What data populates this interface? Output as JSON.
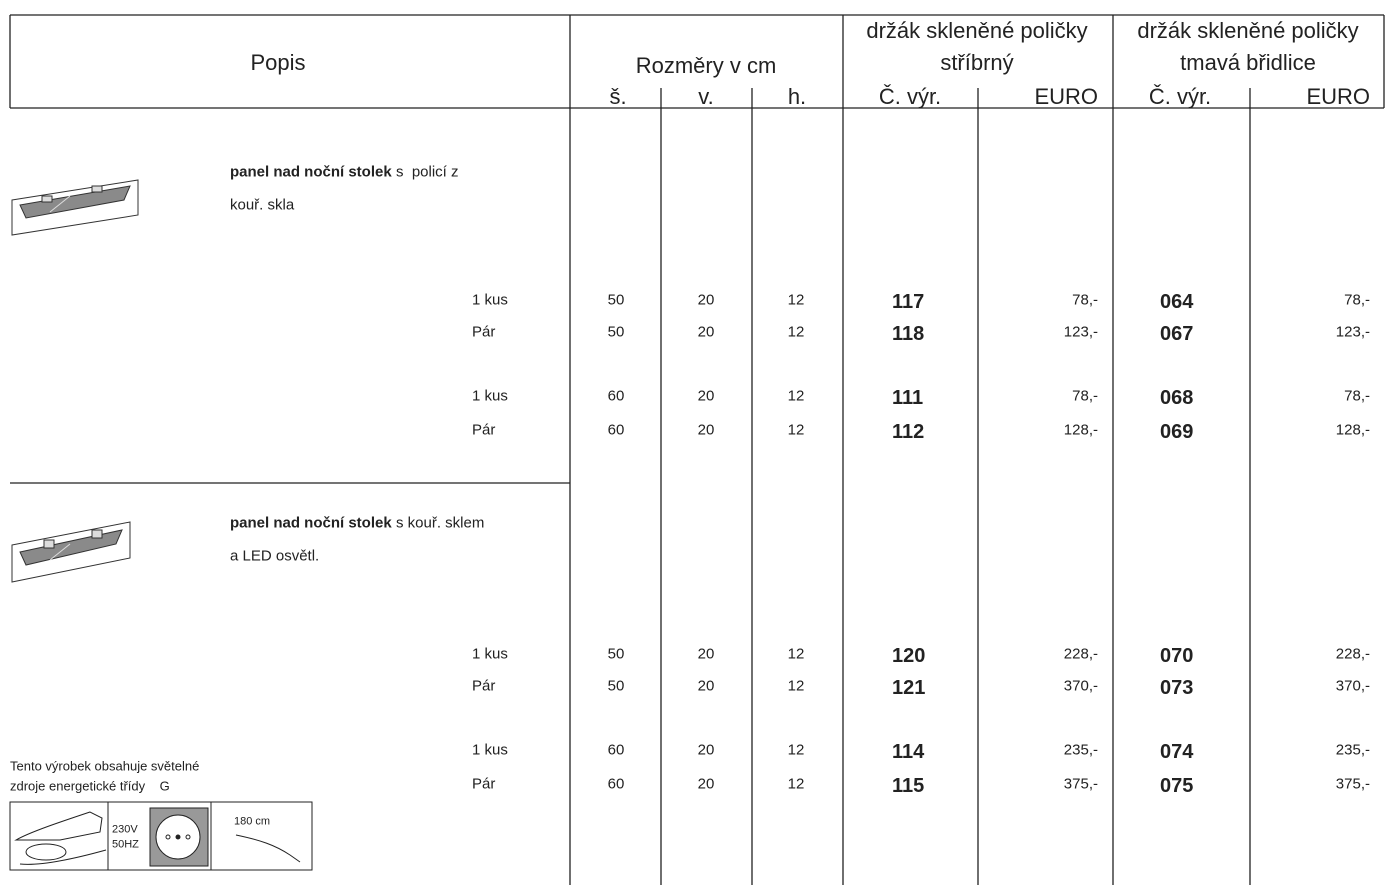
{
  "header": {
    "popis": "Popis",
    "rozmery": "Rozměry v cm",
    "dims": [
      "š.",
      "v.",
      "h."
    ],
    "groups": [
      {
        "title": "držák skleněné poličky",
        "subtitle": "stříbrný",
        "code": "Č. výr.",
        "price": "EURO"
      },
      {
        "title": "držák skleněné poličky",
        "subtitle": "tmavá břidlice",
        "code": "Č. výr.",
        "price": "EURO"
      }
    ]
  },
  "sections": [
    {
      "name": "panel nad noční stolek",
      "lines": [
        "s  policí z",
        "kouř. skla"
      ],
      "rows": [
        {
          "qty": "1 kus",
          "w": 50,
          "h": 20,
          "d": 12,
          "code1": "117",
          "price1": "78,-",
          "code2": "064",
          "price2": "78,-"
        },
        {
          "qty": "Pár",
          "w": 50,
          "h": 20,
          "d": 12,
          "code1": "118",
          "price1": "123,-",
          "code2": "067",
          "price2": "123,-"
        },
        {
          "qty": "1 kus",
          "w": 60,
          "h": 20,
          "d": 12,
          "code1": "111",
          "price1": "78,-",
          "code2": "068",
          "price2": "78,-"
        },
        {
          "qty": "Pár",
          "w": 60,
          "h": 20,
          "d": 12,
          "code1": "112",
          "price1": "128,-",
          "code2": "069",
          "price2": "128,-"
        }
      ]
    },
    {
      "name": "panel nad noční stolek",
      "lines": [
        "s kouř. sklem",
        "a LED osvětl."
      ],
      "rows": [
        {
          "qty": "1 kus",
          "w": 50,
          "h": 20,
          "d": 12,
          "code1": "120",
          "price1": "228,-",
          "code2": "070",
          "price2": "228,-"
        },
        {
          "qty": "Pár",
          "w": 50,
          "h": 20,
          "d": 12,
          "code1": "121",
          "price1": "370,-",
          "code2": "073",
          "price2": "370,-"
        },
        {
          "qty": "1 kus",
          "w": 60,
          "h": 20,
          "d": 12,
          "code1": "114",
          "price1": "235,-",
          "code2": "074",
          "price2": "235,-"
        },
        {
          "qty": "Pár",
          "w": 60,
          "h": 20,
          "d": 12,
          "code1": "115",
          "price1": "375,-",
          "code2": "075",
          "price2": "375,-"
        }
      ]
    }
  ],
  "footnote": {
    "lines": [
      "Tento výrobek obsahuje světelné",
      "zdroje energetické třídy    G"
    ],
    "icon": {
      "voltage": "230V",
      "frequency": "50HZ",
      "cable": "180 cm"
    }
  }
}
